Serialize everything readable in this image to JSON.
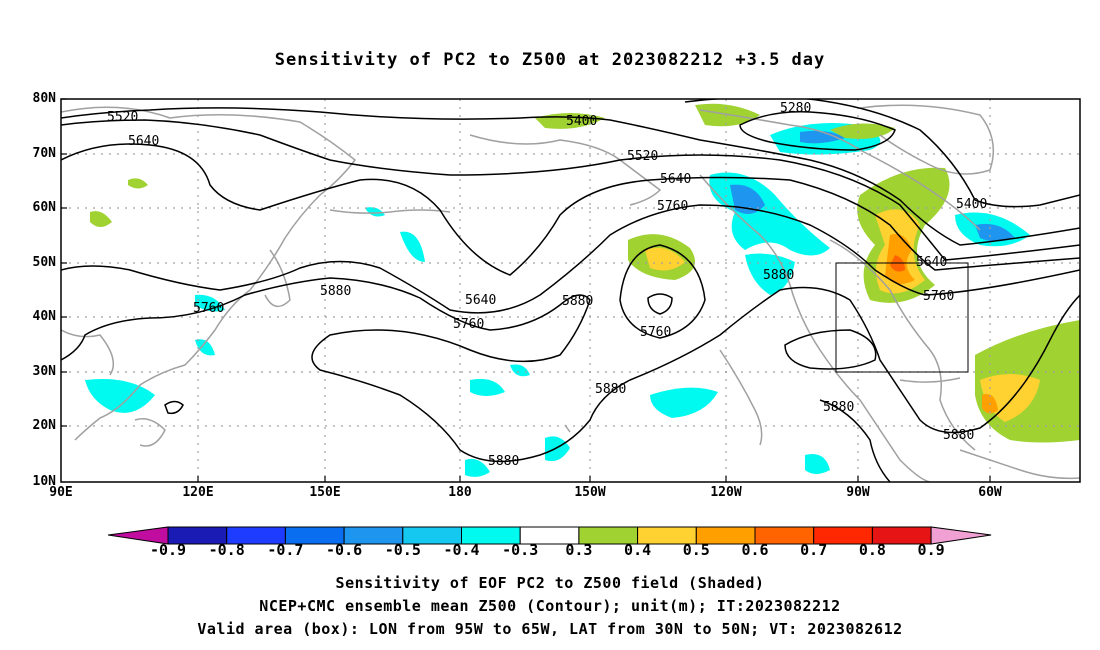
{
  "title": "Sensitivity of PC2 to Z500 at 2023082212 +3.5 day",
  "lat_labels": [
    "80N",
    "70N",
    "60N",
    "50N",
    "40N",
    "30N",
    "20N",
    "10N"
  ],
  "lon_labels": [
    "90E",
    "120E",
    "150E",
    "180",
    "150W",
    "120W",
    "90W",
    "60W"
  ],
  "contour_labels": [
    "5280",
    "5400",
    "5400",
    "5520",
    "5520",
    "5640",
    "5640",
    "5640",
    "5640",
    "5760",
    "5760",
    "5760",
    "5760",
    "5760",
    "5880",
    "5880",
    "5880",
    "5880",
    "5880",
    "5880",
    "5880"
  ],
  "colorbar": {
    "labels": [
      "-0.9",
      "-0.8",
      "-0.7",
      "-0.6",
      "-0.5",
      "-0.4",
      "-0.3",
      "0.3",
      "0.4",
      "0.5",
      "0.6",
      "0.7",
      "0.8",
      "0.9"
    ],
    "colors": [
      "#c00d9f",
      "#1a1ab4",
      "#1e3cff",
      "#0a6ef0",
      "#1e96f0",
      "#14c8f0",
      "#00faf0",
      "#ffffff",
      "#a0d232",
      "#ffd232",
      "#ffa000",
      "#ff6400",
      "#ff2800",
      "#e61414",
      "#f0a0d2"
    ]
  },
  "captions": [
    "Sensitivity of EOF PC2 to Z500 field (Shaded)",
    "NCEP+CMC ensemble mean Z500 (Contour); unit(m); IT:2023082212",
    "Valid area (box): LON from 95W to 65W, LAT from 30N to 50N; VT: 2023082612"
  ],
  "colors": {
    "frame": "#000000",
    "coast": "#a0a0a0",
    "contour": "#000000",
    "grid": "#a0a0a0"
  }
}
